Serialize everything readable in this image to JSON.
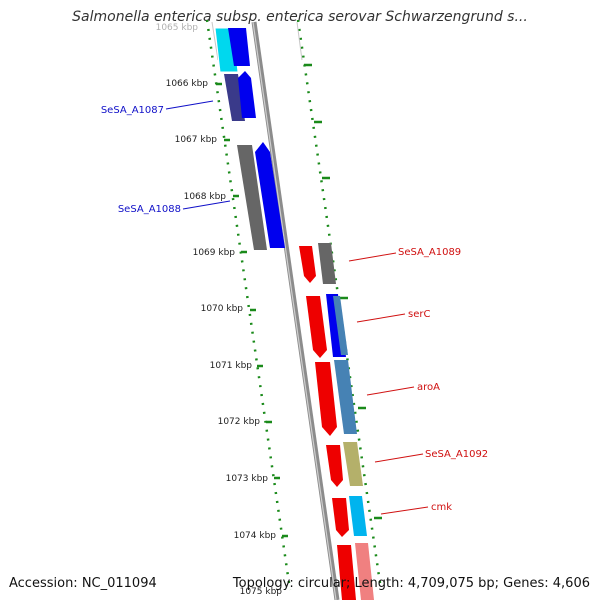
{
  "title": "Salmonella enterica subsp. enterica serovar Schwarzengrund s...",
  "footer": {
    "accession": "Accession: NC_011094",
    "topology": "Topology: circular; Length: 4,709,075 bp; Genes: 4,606"
  },
  "ruler_labels": [
    "1065 kbp",
    "1066 kbp",
    "1067 kbp",
    "1068 kbp",
    "1069 kbp",
    "1070 kbp",
    "1071 kbp",
    "1072 kbp",
    "1073 kbp",
    "1074 kbp",
    "1075 kbp"
  ],
  "gene_labels": {
    "left": [
      "SeSA_A1087",
      "SeSA_A1088"
    ],
    "right": [
      "SeSA_A1089",
      "serC",
      "aroA",
      "SeSA_A1092",
      "cmk"
    ]
  },
  "colors": {
    "backbone": "#8c8c8c",
    "ruler_dots": "#1a8a1a",
    "label_left": "#1010c8",
    "label_right": "#d01010",
    "gene_red": "#ee0000",
    "gene_blue": "#0000ee",
    "gene_cyan": "#00d8ee",
    "gene_navy": "#3a3a8a",
    "gene_gray": "#666666",
    "gene_steel": "#4682b4",
    "gene_khaki": "#b4b06a",
    "gene_pink": "#f08080"
  }
}
